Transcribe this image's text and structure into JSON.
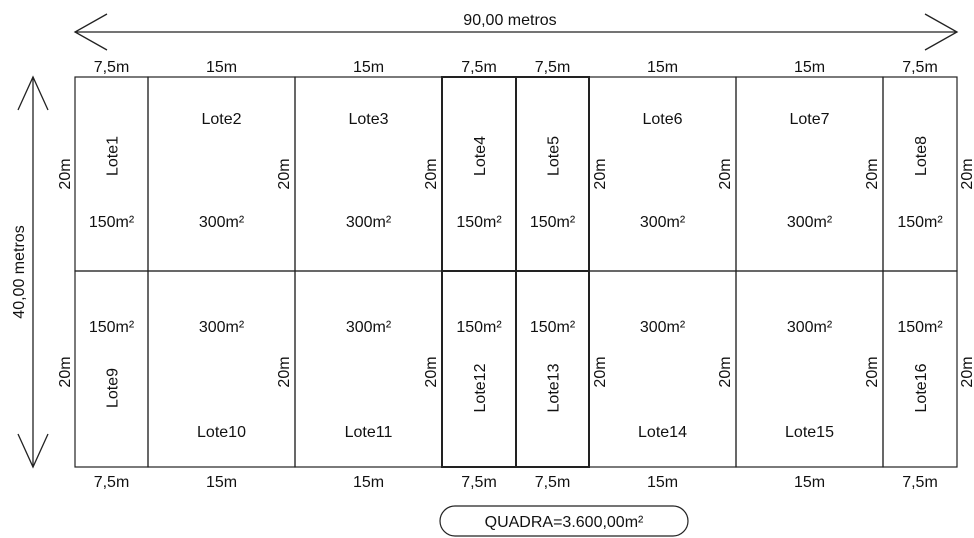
{
  "dimensions": {
    "width_label": "90,00 metros",
    "height_label": "40,00 metros"
  },
  "top_widths": [
    "7,5m",
    "15m",
    "15m",
    "7,5m",
    "7,5m",
    "15m",
    "15m",
    "7,5m"
  ],
  "bottom_widths": [
    "7,5m",
    "15m",
    "15m",
    "7,5m",
    "7,5m",
    "15m",
    "15m",
    "7,5m"
  ],
  "top_row": [
    {
      "name": "Lote1",
      "area": "150m²"
    },
    {
      "name": "Lote2",
      "area": "300m²"
    },
    {
      "name": "Lote3",
      "area": "300m²"
    },
    {
      "name": "Lote4",
      "area": "150m²"
    },
    {
      "name": "Lote5",
      "area": "150m²"
    },
    {
      "name": "Lote6",
      "area": "300m²"
    },
    {
      "name": "Lote7",
      "area": "300m²"
    },
    {
      "name": "Lote8",
      "area": "150m²"
    }
  ],
  "bottom_row": [
    {
      "name": "Lote9",
      "area": "150m²"
    },
    {
      "name": "Lote10",
      "area": "300m²"
    },
    {
      "name": "Lote11",
      "area": "300m²"
    },
    {
      "name": "Lote12",
      "area": "150m²"
    },
    {
      "name": "Lote13",
      "area": "150m²"
    },
    {
      "name": "Lote14",
      "area": "300m²"
    },
    {
      "name": "Lote15",
      "area": "300m²"
    },
    {
      "name": "Lote16",
      "area": "150m²"
    }
  ],
  "depth_label": "20m",
  "total_area_label": "QUADRA=3.600,00m²"
}
